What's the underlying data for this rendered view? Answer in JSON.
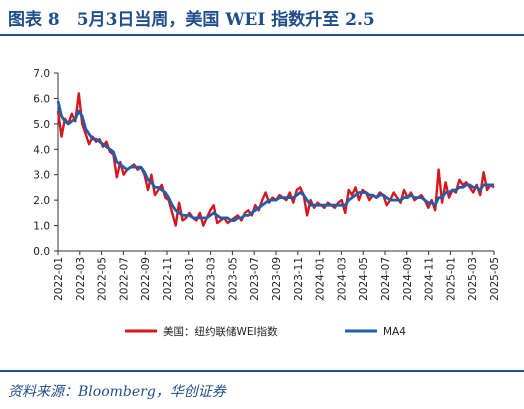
{
  "header": {
    "title": "图表 8　5月3日当周，美国 WEI 指数升至 2.5"
  },
  "footer": {
    "source": "资料来源：Bloomberg，华创证券"
  },
  "chart_data": {
    "type": "line",
    "ylim": [
      0,
      7
    ],
    "yticks": [
      "0.0",
      "1.0",
      "2.0",
      "3.0",
      "4.0",
      "5.0",
      "6.0",
      "7.0"
    ],
    "xticks": [
      "2022-01",
      "2022-03",
      "2022-05",
      "2022-07",
      "2022-09",
      "2022-11",
      "2023-01",
      "2023-03",
      "2023-05",
      "2023-07",
      "2023-09",
      "2023-11",
      "2024-01",
      "2024-03",
      "2024-05",
      "2024-07",
      "2024-09",
      "2024-11",
      "2025-01",
      "2025-03",
      "2025-05"
    ],
    "legend_position": "bottom",
    "series": [
      {
        "name": "美国：纽约联储WEI指数",
        "color": "#d9161c",
        "values": [
          5.5,
          4.5,
          5.2,
          5.0,
          5.4,
          5.1,
          6.2,
          5.0,
          4.6,
          4.2,
          4.5,
          4.3,
          4.4,
          4.1,
          4.3,
          3.9,
          3.8,
          2.9,
          3.5,
          3.0,
          3.2,
          3.3,
          3.4,
          3.2,
          3.3,
          3.0,
          2.4,
          3.0,
          2.2,
          2.4,
          2.6,
          2.1,
          2.0,
          1.5,
          1.0,
          1.9,
          1.2,
          1.3,
          1.5,
          1.3,
          1.2,
          1.5,
          1.0,
          1.3,
          1.6,
          1.8,
          1.1,
          1.2,
          1.3,
          1.1,
          1.2,
          1.3,
          1.4,
          1.2,
          1.5,
          1.6,
          1.4,
          1.8,
          1.6,
          2.0,
          2.3,
          1.9,
          2.1,
          2.0,
          2.2,
          2.1,
          2.0,
          2.3,
          1.9,
          2.4,
          2.5,
          2.2,
          1.4,
          2.0,
          1.7,
          1.9,
          1.8,
          1.7,
          1.9,
          1.8,
          1.7,
          1.9,
          2.0,
          1.5,
          2.4,
          2.2,
          2.5,
          2.0,
          2.4,
          2.3,
          2.0,
          2.2,
          2.1,
          2.3,
          2.2,
          1.8,
          2.0,
          2.3,
          2.1,
          1.9,
          2.4,
          2.1,
          2.3,
          2.0,
          2.1,
          2.2,
          2.0,
          1.7,
          2.0,
          1.6,
          3.2,
          1.9,
          2.7,
          2.1,
          2.4,
          2.3,
          2.8,
          2.6,
          2.7,
          2.5,
          2.3,
          2.6,
          2.2,
          3.1,
          2.4,
          2.6,
          2.5
        ]
      },
      {
        "name": "MA4",
        "color": "#1f5faa",
        "values": [
          5.9,
          5.3,
          5.1,
          5.0,
          5.1,
          5.2,
          5.5,
          5.3,
          4.8,
          4.6,
          4.4,
          4.4,
          4.3,
          4.2,
          4.1,
          4.0,
          3.9,
          3.5,
          3.4,
          3.3,
          3.2,
          3.3,
          3.3,
          3.3,
          3.3,
          3.1,
          2.8,
          2.7,
          2.5,
          2.5,
          2.4,
          2.3,
          2.1,
          1.8,
          1.6,
          1.5,
          1.4,
          1.4,
          1.4,
          1.3,
          1.3,
          1.3,
          1.3,
          1.3,
          1.4,
          1.5,
          1.4,
          1.3,
          1.3,
          1.3,
          1.2,
          1.2,
          1.3,
          1.3,
          1.4,
          1.4,
          1.5,
          1.6,
          1.7,
          1.8,
          1.9,
          2.0,
          2.0,
          2.0,
          2.1,
          2.1,
          2.1,
          2.1,
          2.1,
          2.2,
          2.3,
          2.2,
          2.0,
          1.8,
          1.8,
          1.8,
          1.8,
          1.8,
          1.8,
          1.8,
          1.8,
          1.8,
          1.8,
          1.8,
          2.0,
          2.1,
          2.2,
          2.3,
          2.3,
          2.3,
          2.2,
          2.2,
          2.1,
          2.2,
          2.2,
          2.1,
          2.0,
          2.0,
          2.0,
          2.0,
          2.1,
          2.1,
          2.2,
          2.1,
          2.1,
          2.1,
          2.0,
          1.9,
          1.9,
          1.8,
          2.1,
          2.1,
          2.3,
          2.3,
          2.4,
          2.4,
          2.5,
          2.5,
          2.6,
          2.6,
          2.5,
          2.5,
          2.4,
          2.6,
          2.6,
          2.6,
          2.6
        ]
      }
    ]
  }
}
